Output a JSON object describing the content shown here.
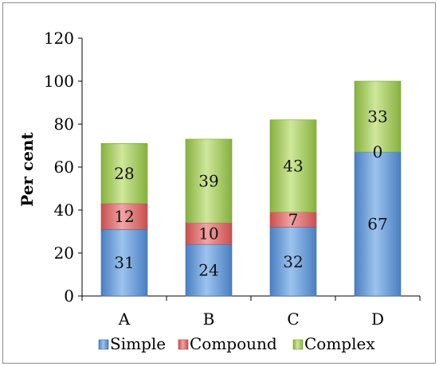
{
  "chart_data": {
    "type": "bar",
    "stacked": true,
    "categories": [
      "A",
      "B",
      "C",
      "D"
    ],
    "series": [
      {
        "name": "Simple",
        "values": [
          31,
          24,
          32,
          67
        ],
        "color": "#5b9bd5"
      },
      {
        "name": "Compound",
        "values": [
          12,
          10,
          7,
          0
        ],
        "color": "#e06666"
      },
      {
        "name": "Complex",
        "values": [
          28,
          39,
          43,
          33
        ],
        "color": "#9bbb59"
      }
    ],
    "ylabel": "Per cent",
    "ylim": [
      0,
      120
    ],
    "yticks": [
      0,
      20,
      40,
      60,
      80,
      100,
      120
    ],
    "grid": false,
    "legend": "bottom"
  }
}
